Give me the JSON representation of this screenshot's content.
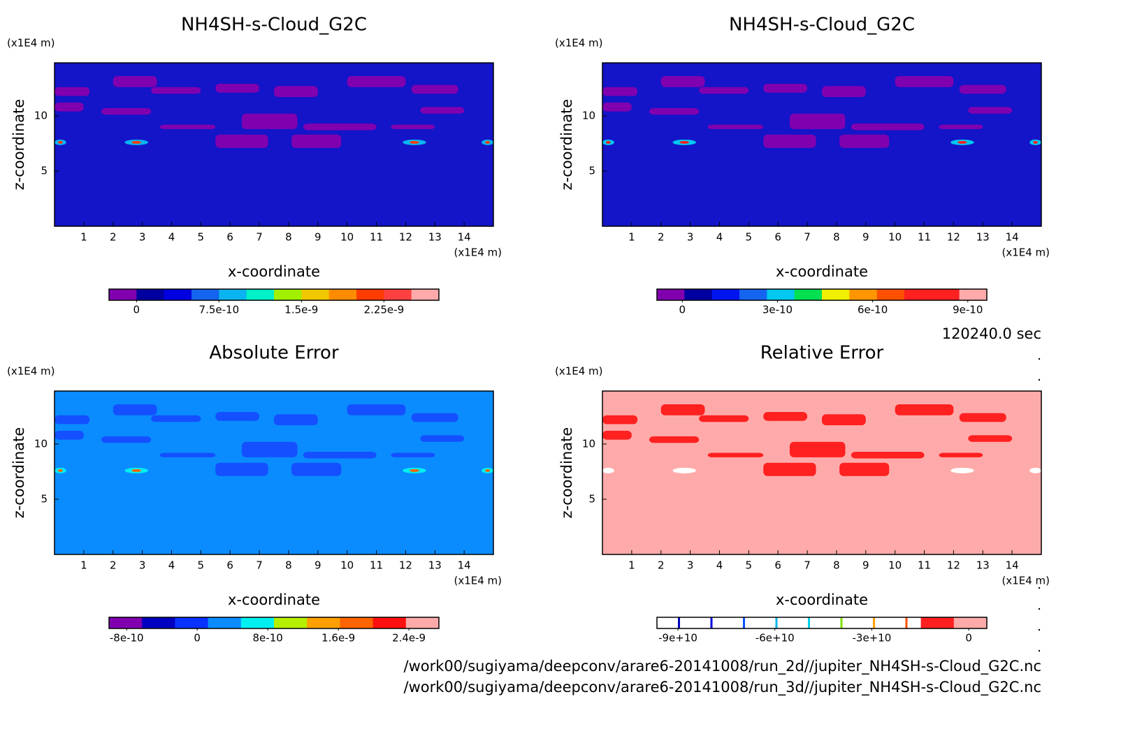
{
  "chart_data": [
    {
      "type": "contour",
      "title": "NH4SH-s-Cloud_G2C",
      "xlabel": "x-coordinate",
      "ylabel": "z-coordinate",
      "xunit": "(x1E4 m)",
      "yunit": "(x1E4 m)",
      "xlim": [
        0,
        15
      ],
      "ylim": [
        0,
        14.8
      ],
      "xticks": [
        1,
        2,
        3,
        4,
        5,
        6,
        7,
        8,
        9,
        10,
        11,
        12,
        13,
        14
      ],
      "yticks": [
        5,
        10
      ],
      "fill": "#1414c8",
      "blob": "#8000b0",
      "colorbar": {
        "lim": [
          -2.5e-10,
          2.75e-09
        ],
        "ticks": [
          0,
          7.5e-10,
          1.5e-09,
          2.25e-09
        ],
        "colors": [
          "#8000b0",
          "#0000a0",
          "#0000e0",
          "#1464f0",
          "#0ab4f0",
          "#00f0c8",
          "#a0f000",
          "#f0c800",
          "#ff8c00",
          "#ff3c00",
          "#ff4040",
          "#ffaaaa"
        ]
      }
    },
    {
      "type": "contour",
      "title": "NH4SH-s-Cloud_G2C",
      "xlabel": "x-coordinate",
      "ylabel": "z-coordinate",
      "xunit": "(x1E4 m)",
      "yunit": "(x1E4 m)",
      "xlim": [
        0,
        15
      ],
      "ylim": [
        0,
        14.8
      ],
      "xticks": [
        1,
        2,
        3,
        4,
        5,
        6,
        7,
        8,
        9,
        10,
        11,
        12,
        13,
        14
      ],
      "yticks": [
        5,
        10
      ],
      "fill": "#1414c8",
      "blob": "#8000b0",
      "colorbar": {
        "lim": [
          -8e-11,
          9.6e-10
        ],
        "ticks": [
          0,
          3e-10,
          6e-10,
          9e-10
        ],
        "colors": [
          "#8000b0",
          "#0000a0",
          "#0014f0",
          "#1464f0",
          "#00c8f0",
          "#00e050",
          "#f0f000",
          "#ff9600",
          "#ff5000",
          "#ff2020",
          "#ff2020",
          "#ffaaaa"
        ]
      }
    },
    {
      "type": "contour",
      "title": "Absolute Error",
      "xlabel": "x-coordinate",
      "ylabel": "z-coordinate",
      "xunit": "(x1E4 m)",
      "yunit": "(x1E4 m)",
      "xlim": [
        0,
        15
      ],
      "ylim": [
        0,
        14.8
      ],
      "xticks": [
        1,
        2,
        3,
        4,
        5,
        6,
        7,
        8,
        9,
        10,
        11,
        12,
        13,
        14
      ],
      "yticks": [
        5,
        10
      ],
      "fill": "#0a8cff",
      "blob": "#1450ff",
      "colorbar": {
        "lim": [
          -1e-09,
          2.74e-09
        ],
        "ticks": [
          -8e-10,
          0,
          8e-10,
          1.6e-09,
          2.4e-09
        ],
        "colors": [
          "#8000b0",
          "#0000c0",
          "#0a32ff",
          "#0a8cff",
          "#00f0f0",
          "#b4f000",
          "#ffa000",
          "#ff6400",
          "#ff1010",
          "#ffaaaa"
        ]
      }
    },
    {
      "type": "contour",
      "title": "Relative Error",
      "xlabel": "x-coordinate",
      "ylabel": "z-coordinate",
      "xunit": "(x1E4 m)",
      "yunit": "(x1E4 m)",
      "xlim": [
        0,
        15
      ],
      "ylim": [
        0,
        14.8
      ],
      "xticks": [
        1,
        2,
        3,
        4,
        5,
        6,
        7,
        8,
        9,
        10,
        11,
        12,
        13,
        14
      ],
      "yticks": [
        5,
        10
      ],
      "fill": "#ffaaaa",
      "blob": "#ff2020",
      "colorbar": {
        "lim": [
          -96500000000.0,
          5600000000.0
        ],
        "ticks": [
          {
            "value": -90000000000.0,
            "label": "-9e+10"
          },
          {
            "value": -60000000000.0,
            "label": "-6e+10"
          },
          {
            "value": -30000000000.0,
            "label": "-3e+10"
          },
          0
        ],
        "colors": [
          "#ffffff",
          "#ffffff",
          "#ffffff",
          "#ffffff",
          "#ffffff",
          "#ffffff",
          "#ffffff",
          "#ffffff",
          "#ff2020",
          "#ffaaaa"
        ]
      }
    }
  ],
  "annotations": {
    "time": "120240.0 sec",
    "files": [
      "/work00/sugiyama/deepconv/arare6-20141008/run_2d//jupiter_NH4SH-s-Cloud_G2C.nc",
      "/work00/sugiyama/deepconv/arare6-20141008/run_3d//jupiter_NH4SH-s-Cloud_G2C.nc"
    ]
  }
}
